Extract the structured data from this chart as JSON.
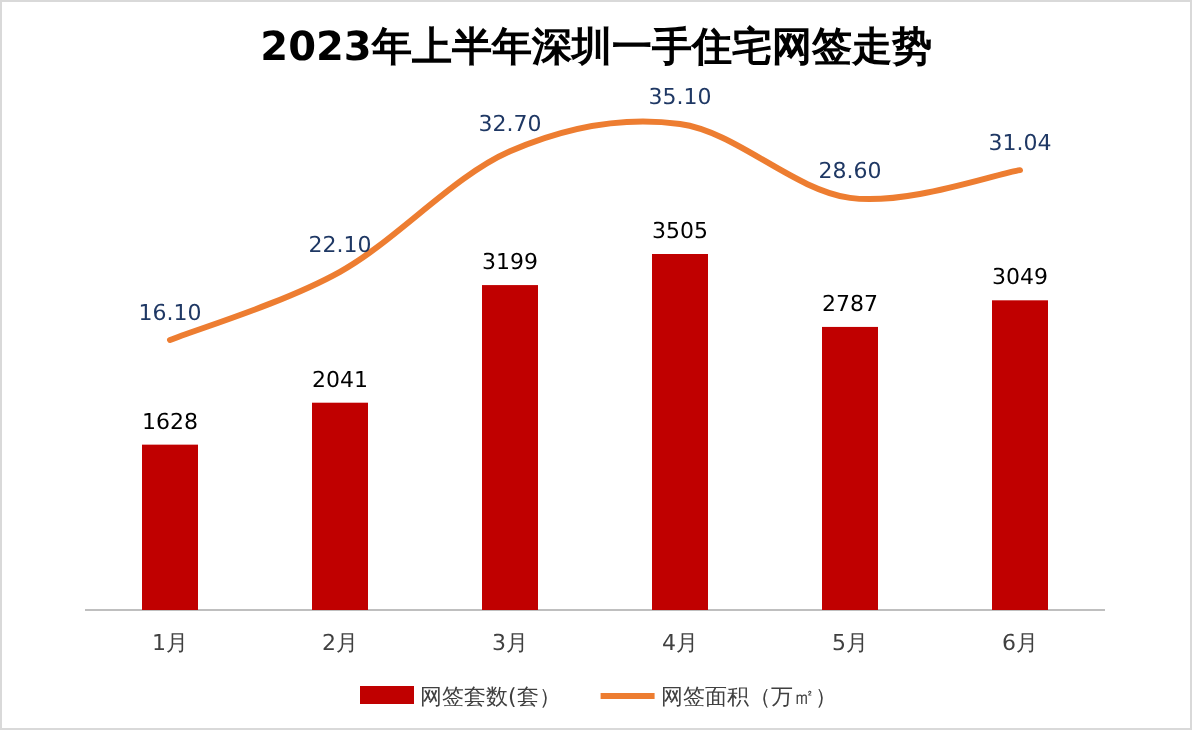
{
  "chart_data": {
    "type": "bar",
    "title": "2023年上半年深圳一手住宅网签走势",
    "categories": [
      "1月",
      "2月",
      "3月",
      "4月",
      "5月",
      "6月"
    ],
    "series": [
      {
        "name": "网签套数(套）",
        "color": "#c00000",
        "values": [
          1628,
          2041,
          3199,
          3505,
          2787,
          3049
        ]
      },
      {
        "name": "网签面积（万㎡）",
        "type": "line",
        "axis": "y2",
        "color": "#ed7d31",
        "values": [
          16.1,
          22.1,
          32.7,
          35.1,
          28.6,
          31.04
        ],
        "value_labels": [
          "16.10",
          "22.10",
          "32.70",
          "35.10",
          "28.60",
          "31.04"
        ]
      }
    ],
    "data_labels": true,
    "legend": "bottom",
    "grid": false,
    "marker": "none"
  }
}
